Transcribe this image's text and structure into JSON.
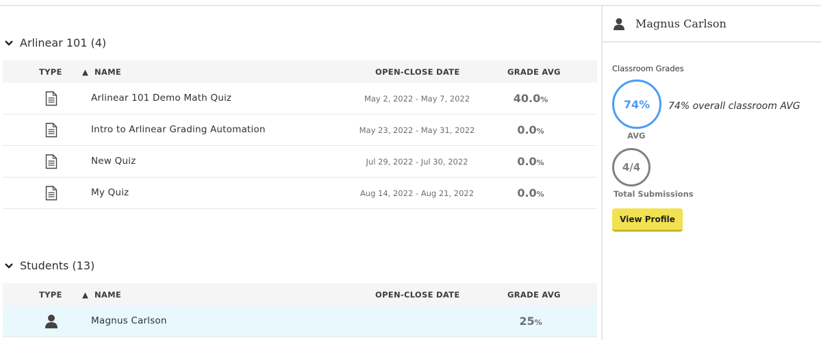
{
  "sections": [
    {
      "title": "Arlinear 101 (4)",
      "columns": {
        "type": "TYPE",
        "name": "NAME",
        "date": "OPEN-CLOSE DATE",
        "grade": "GRADE AVG"
      },
      "rows": [
        {
          "icon": "document-icon",
          "name": "Arlinear 101 Demo Math Quiz",
          "date": "May 2, 2022 - May 7, 2022",
          "grade": "40.0",
          "unit": "%"
        },
        {
          "icon": "document-icon",
          "name": "Intro to Arlinear Grading Automation",
          "date": "May 23, 2022 - May 31, 2022",
          "grade": "0.0",
          "unit": "%"
        },
        {
          "icon": "document-icon",
          "name": "New Quiz",
          "date": "Jul 29, 2022 - Jul 30, 2022",
          "grade": "0.0",
          "unit": "%"
        },
        {
          "icon": "document-icon",
          "name": "My Quiz",
          "date": "Aug 14, 2022 - Aug 21, 2022",
          "grade": "0.0",
          "unit": "%"
        }
      ]
    },
    {
      "title": "Students (13)",
      "columns": {
        "type": "TYPE",
        "name": "NAME",
        "date": "OPEN-CLOSE DATE",
        "grade": "GRADE AVG"
      },
      "rows": [
        {
          "icon": "user-icon",
          "name": "Magnus Carlson",
          "date": "",
          "grade": "25",
          "unit": "%",
          "selected": true
        }
      ]
    }
  ],
  "panel": {
    "name": "Magnus Carlson",
    "classroom_grades": "Classroom Grades",
    "avg_value": "74%",
    "avg_text": "74% overall classroom AVG",
    "avg_label": "AVG",
    "submissions": "4/4",
    "submissions_label": "Total Submissions",
    "view_profile": "View Profile"
  },
  "colors": {
    "accent_blue": "#4a9cf6",
    "button_yellow": "#f2e150",
    "selected_row": "#e8f8fc"
  }
}
